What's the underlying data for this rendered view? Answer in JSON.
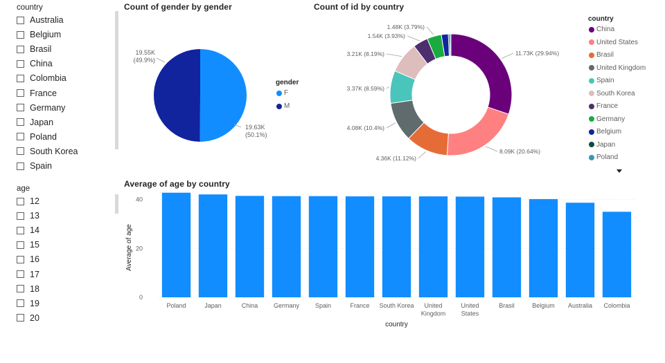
{
  "slicers": {
    "country": {
      "title": "country",
      "items": [
        "Australia",
        "Belgium",
        "Brasil",
        "China",
        "Colombia",
        "France",
        "Germany",
        "Japan",
        "Poland",
        "South Korea",
        "Spain"
      ]
    },
    "age": {
      "title": "age",
      "items": [
        "12",
        "13",
        "14",
        "15",
        "16",
        "17",
        "18",
        "19",
        "20"
      ]
    }
  },
  "chart_data": [
    {
      "type": "pie",
      "title": "Count of gender by gender",
      "legend_title": "gender",
      "categories": [
        "F",
        "M"
      ],
      "values": [
        19.63,
        19.55
      ],
      "unit": "K",
      "labels": [
        "19.63K",
        "19.55K"
      ],
      "percent_labels": [
        "(50.1%)",
        "(49.9%)"
      ],
      "colors": [
        "#118DFF",
        "#12239E"
      ],
      "legend_position": "right"
    },
    {
      "type": "pie",
      "subtype": "donut",
      "title": "Count of id by country",
      "legend_title": "country",
      "categories": [
        "China",
        "United States",
        "Brasil",
        "United Kingdom",
        "Spain",
        "South Korea",
        "France",
        "Germany",
        "Belgium",
        "Japan",
        "Poland"
      ],
      "values": [
        11.73,
        8.09,
        4.36,
        4.08,
        3.37,
        3.21,
        1.54,
        1.48,
        0.72,
        0.15,
        0.12
      ],
      "unit": "K",
      "labels": [
        "11.73K (29.94%)",
        "8.09K (20.64%)",
        "4.36K (11.12%)",
        "4.08K (10.4%)",
        "3.37K (8.59%)",
        "3.21K (8.19%)",
        "1.54K (3.93%)",
        "1.48K (3.79%)",
        "",
        "",
        ""
      ],
      "colors": [
        "#6B007B",
        "#FF8080",
        "#E66C37",
        "#5F6B6D",
        "#4AC5BB",
        "#DEBDBD",
        "#4D2F6E",
        "#1AAB40",
        "#12239E",
        "#0D4D3B",
        "#3599B8"
      ],
      "legend_position": "right"
    },
    {
      "type": "bar",
      "title": "Average of age by country",
      "xlabel": "country",
      "ylabel": "Average of age",
      "categories": [
        "Poland",
        "Japan",
        "China",
        "Germany",
        "Spain",
        "France",
        "South Korea",
        "United Kingdom",
        "United States",
        "Brasil",
        "Belgium",
        "Australia",
        "Colombia"
      ],
      "category_lines": [
        [
          "Poland"
        ],
        [
          "Japan"
        ],
        [
          "China"
        ],
        [
          "Germany"
        ],
        [
          "Spain"
        ],
        [
          "France"
        ],
        [
          "South Korea"
        ],
        [
          "United",
          "Kingdom"
        ],
        [
          "United",
          "States"
        ],
        [
          "Brasil"
        ],
        [
          "Belgium"
        ],
        [
          "Australia"
        ],
        [
          "Colombia"
        ]
      ],
      "values": [
        42.8,
        42.1,
        41.5,
        41.4,
        41.4,
        41.3,
        41.3,
        41.3,
        41.2,
        40.9,
        40.2,
        38.7,
        35.0
      ],
      "ylim": [
        0,
        43
      ],
      "yticks": [
        0,
        20,
        40
      ],
      "colors": [
        "#118DFF"
      ]
    }
  ]
}
